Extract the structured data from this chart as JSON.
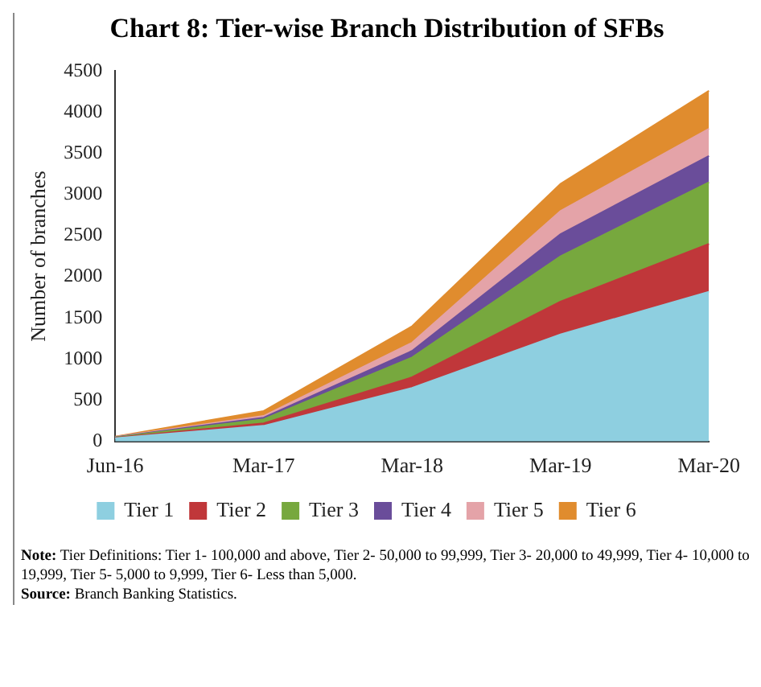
{
  "chart_data": {
    "type": "area",
    "title": "Chart 8: Tier-wise Branch Distribution of SFBs",
    "ylabel": "Number of branches",
    "categories": [
      "Jun-16",
      "Mar-17",
      "Mar-18",
      "Mar-19",
      "Mar-20"
    ],
    "stacked": true,
    "ylim": [
      0,
      4500
    ],
    "yticks": [
      0,
      500,
      1000,
      1500,
      2000,
      2500,
      3000,
      3500,
      4000,
      4500
    ],
    "grid": false,
    "legend": "bottom",
    "series": [
      {
        "name": "Tier 1",
        "color": "#8ecfe0",
        "values": [
          40,
          190,
          650,
          1300,
          1820
        ]
      },
      {
        "name": "Tier 2",
        "color": "#c0373a",
        "values": [
          5,
          30,
          130,
          400,
          580
        ]
      },
      {
        "name": "Tier 3",
        "color": "#77a83e",
        "values": [
          5,
          50,
          240,
          550,
          750
        ]
      },
      {
        "name": "Tier 4",
        "color": "#6a4d9a",
        "values": [
          3,
          20,
          80,
          270,
          320
        ]
      },
      {
        "name": "Tier 5",
        "color": "#e4a3a8",
        "values": [
          3,
          20,
          100,
          280,
          330
        ]
      },
      {
        "name": "Tier 6",
        "color": "#e08c2e",
        "values": [
          4,
          60,
          200,
          330,
          460
        ]
      }
    ],
    "annotations": [
      "Note: Tier Definitions: Tier 1- 100,000 and above, Tier 2- 50,000 to 99,999, Tier 3- 20,000 to 49,999, Tier 4- 10,000 to 19,999, Tier 5- 5,000 to 9,999, Tier 6- Less than 5,000.",
      "Source: Branch Banking Statistics."
    ]
  }
}
